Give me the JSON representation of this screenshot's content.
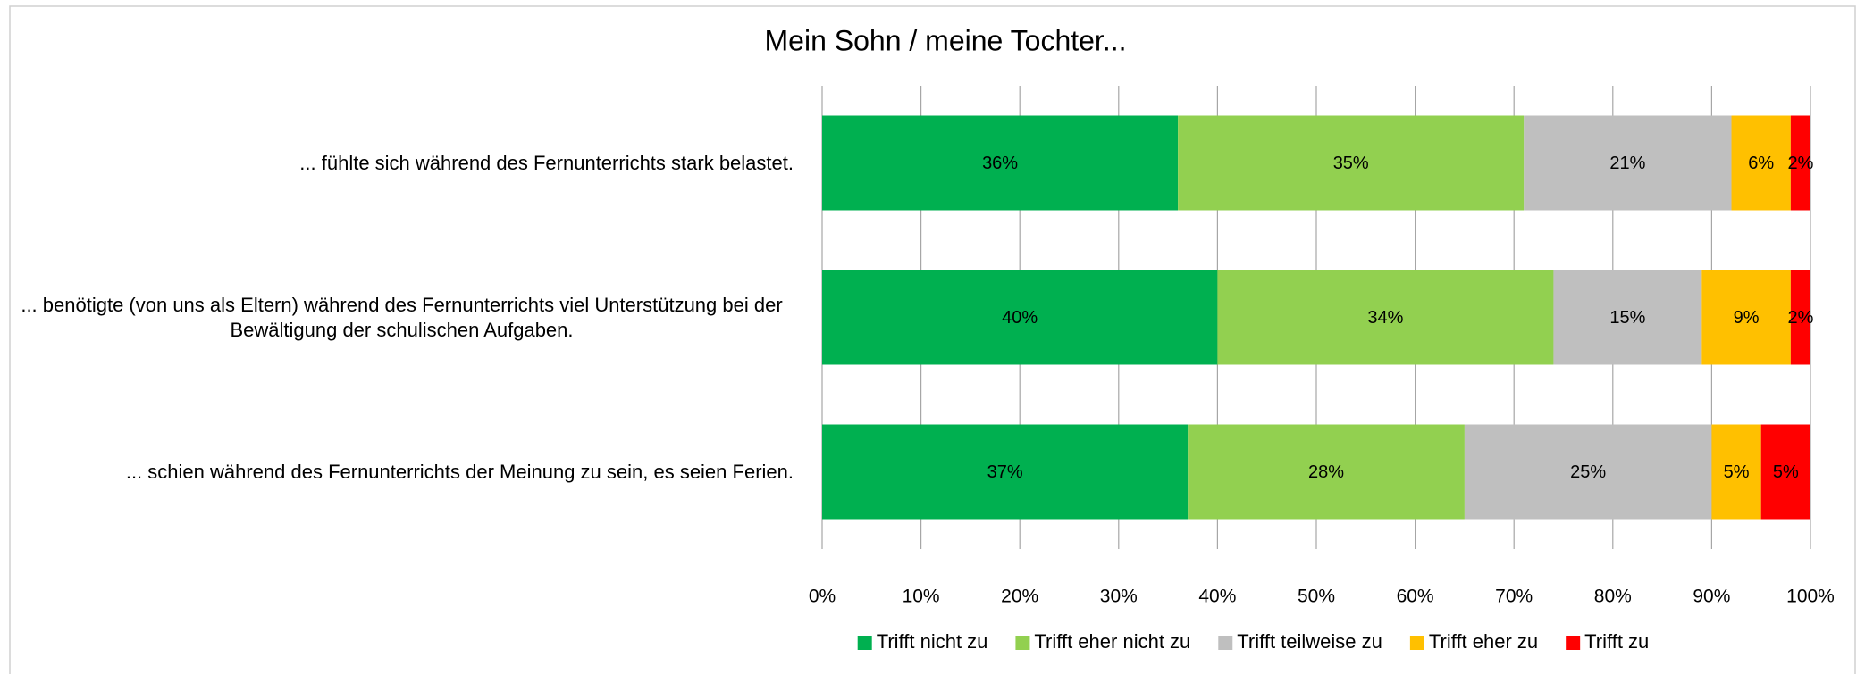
{
  "chart_data": {
    "type": "stacked-barh",
    "title": "Mein Sohn / meine Tochter...",
    "categories": [
      "... fühlte sich während des Fernunterrichts stark belastet.",
      "... benötigte (von uns als Eltern) während des Fernunterrichts viel Unterstützung bei der Bewältigung der schulischen Aufgaben.",
      "... schien während des Fernunterrichts der Meinung zu sein, es seien Ferien."
    ],
    "series": [
      {
        "name": "Trifft nicht zu",
        "color": "#00b050",
        "values": [
          36,
          40,
          37
        ],
        "value_labels": [
          "36%",
          "40%",
          "37%"
        ]
      },
      {
        "name": "Trifft eher nicht zu",
        "color": "#92d050",
        "values": [
          35,
          34,
          28
        ],
        "value_labels": [
          "35%",
          "34%",
          "28%"
        ]
      },
      {
        "name": "Trifft teilweise zu",
        "color": "#bfbfbf",
        "values": [
          21,
          15,
          25
        ],
        "value_labels": [
          "21%",
          "15%",
          "25%"
        ]
      },
      {
        "name": "Trifft eher zu",
        "color": "#ffc000",
        "values": [
          6,
          9,
          5
        ],
        "value_labels": [
          "6%",
          "9%",
          "5%"
        ]
      },
      {
        "name": "Trifft zu",
        "color": "#ff0000",
        "values": [
          2,
          2,
          5
        ],
        "value_labels": [
          "2%",
          "2%",
          "5%"
        ]
      }
    ],
    "xlim": [
      0,
      100
    ],
    "xticks": [
      {
        "value": 0,
        "label": "0%"
      },
      {
        "value": 10,
        "label": "10%"
      },
      {
        "value": 20,
        "label": "20%"
      },
      {
        "value": 30,
        "label": "30%"
      },
      {
        "value": 40,
        "label": "40%"
      },
      {
        "value": 50,
        "label": "50%"
      },
      {
        "value": 60,
        "label": "60%"
      },
      {
        "value": 70,
        "label": "70%"
      },
      {
        "value": 80,
        "label": "80%"
      },
      {
        "value": 90,
        "label": "90%"
      },
      {
        "value": 100,
        "label": "100%"
      }
    ],
    "grid": true,
    "legend": "bottom"
  }
}
